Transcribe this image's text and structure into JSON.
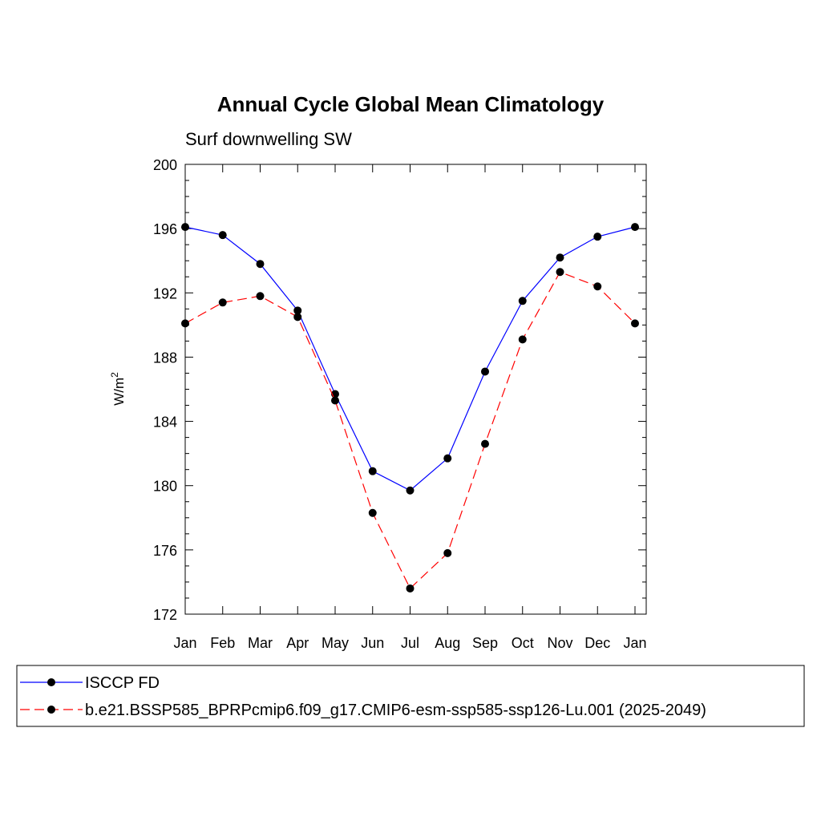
{
  "chart_data": {
    "type": "line",
    "title": "Annual Cycle Global Mean Climatology",
    "subtitle": "Surf downwelling SW",
    "ylabel": "W/m",
    "ylabel_superscript": "2",
    "xlabel": "",
    "categories": [
      "Jan",
      "Feb",
      "Mar",
      "Apr",
      "May",
      "Jun",
      "Jul",
      "Aug",
      "Sep",
      "Oct",
      "Nov",
      "Dec",
      "Jan"
    ],
    "ylim": [
      172,
      200
    ],
    "yticks": [
      172,
      176,
      180,
      184,
      188,
      192,
      196,
      200
    ],
    "grid": false,
    "legend_position": "bottom",
    "series": [
      {
        "name": "ISCCP FD",
        "color": "#0000ff",
        "line_style": "solid",
        "marker": "filled-circle",
        "values": [
          196.1,
          195.6,
          193.8,
          190.9,
          185.7,
          180.9,
          179.7,
          181.7,
          187.1,
          191.5,
          194.2,
          195.5,
          196.1
        ]
      },
      {
        "name": "b.e21.BSSP585_BPRPcmip6.f09_g17.CMIP6-esm-ssp585-ssp126-Lu.001 (2025-2049)",
        "color": "#ff0000",
        "line_style": "dashed",
        "marker": "filled-circle",
        "values": [
          190.1,
          191.4,
          191.8,
          190.5,
          185.3,
          178.3,
          173.6,
          175.8,
          182.6,
          189.1,
          193.3,
          192.4,
          190.1
        ]
      }
    ]
  }
}
